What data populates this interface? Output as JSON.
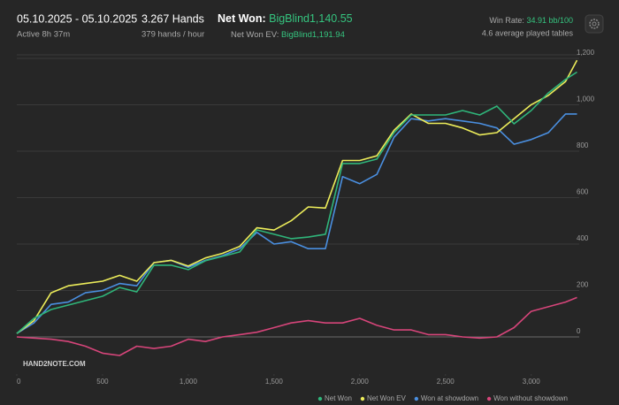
{
  "header": {
    "date_range": "05.10.2025 - 05.10.2025",
    "active": "Active 8h 37m",
    "hands": "3.267 Hands",
    "hands_per_hour": "379 hands / hour",
    "net_won_label": "Net Won:",
    "net_won_value": "BigBlind1,140.55",
    "net_won_ev_label": "Net Won  EV:",
    "net_won_ev_value": "BigBlind1,191.94",
    "win_rate_label": "Win Rate:",
    "win_rate_value": "34.91 bb/100",
    "tables": "4.6 average played tables"
  },
  "logo": "HAND2NOTE.COM",
  "chart_data": {
    "type": "line",
    "x": [
      0,
      100,
      200,
      300,
      400,
      500,
      600,
      700,
      800,
      900,
      1000,
      1100,
      1200,
      1300,
      1400,
      1500,
      1600,
      1700,
      1800,
      1900,
      2000,
      2100,
      2200,
      2300,
      2400,
      2500,
      2600,
      2700,
      2800,
      2900,
      3000,
      3100,
      3200,
      3267
    ],
    "series": [
      {
        "name": "Net Won",
        "color": "#2fb57a",
        "values": [
          15,
          80,
          118,
          137,
          156,
          175,
          213,
          194,
          309,
          309,
          290,
          328,
          347,
          366,
          461,
          442,
          423,
          430,
          442,
          747,
          747,
          766,
          880,
          956,
          956,
          956,
          975,
          956,
          994,
          918,
          975,
          1051,
          1109,
          1140.55
        ]
      },
      {
        "name": "Net Won  EV",
        "color": "#ecec5a",
        "values": [
          15,
          70,
          190,
          220,
          230,
          240,
          265,
          240,
          320,
          330,
          305,
          340,
          360,
          390,
          470,
          460,
          500,
          560,
          555,
          760,
          760,
          780,
          890,
          960,
          920,
          920,
          900,
          870,
          880,
          940,
          1000,
          1040,
          1100,
          1191.94
        ]
      },
      {
        "name": "Won at showdown",
        "color": "#4a8fe0",
        "values": [
          15,
          60,
          140,
          150,
          190,
          200,
          230,
          220,
          320,
          330,
          300,
          330,
          350,
          380,
          450,
          400,
          410,
          380,
          380,
          690,
          660,
          700,
          860,
          940,
          930,
          940,
          930,
          920,
          900,
          830,
          850,
          880,
          960,
          960
        ]
      },
      {
        "name": "Won without showdown",
        "color": "#d6457a",
        "values": [
          0,
          -5,
          -10,
          -20,
          -40,
          -70,
          -80,
          -40,
          -50,
          -40,
          -10,
          -20,
          0,
          10,
          20,
          40,
          60,
          70,
          60,
          60,
          80,
          50,
          30,
          30,
          10,
          10,
          0,
          -5,
          0,
          40,
          110,
          130,
          150,
          170
        ]
      }
    ],
    "xlim": [
      0,
      3280
    ],
    "ylim": [
      -160,
      1215
    ],
    "xticks": [
      0,
      500,
      {
        "value": 1000,
        "label": "1,000"
      },
      {
        "value": 1500,
        "label": "1,500"
      },
      {
        "value": 2000,
        "label": "2,000"
      },
      {
        "value": 2500,
        "label": "2,500"
      },
      {
        "value": 3000,
        "label": "3,000"
      }
    ],
    "yticks": [
      0,
      200,
      400,
      600,
      800,
      {
        "value": 1000,
        "label": "1,000"
      },
      {
        "value": 1200,
        "label": "1,200"
      }
    ],
    "grid": true
  }
}
